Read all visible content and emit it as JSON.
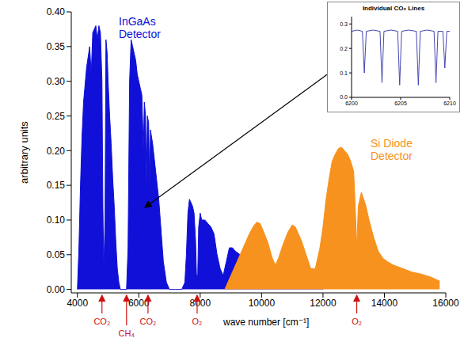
{
  "chart_data": {
    "type": "area",
    "x_label": "wave number [cm⁻¹]",
    "y_label": "arbitrary units",
    "xlim": [
      3800,
      16000
    ],
    "xticks": [
      4000,
      6000,
      8000,
      10000,
      12000,
      14000,
      16000
    ],
    "ylim": [
      -0.005,
      0.4
    ],
    "yticks": [
      {
        "value": 0,
        "label": "0.00"
      },
      {
        "value": 0.05,
        "label": "0.05"
      },
      {
        "value": 0.1,
        "label": "0.10"
      },
      {
        "value": 0.15,
        "label": "0.15"
      },
      {
        "value": 0.2,
        "label": "0.20"
      },
      {
        "value": 0.25,
        "label": "0.25"
      },
      {
        "value": 0.3,
        "label": "0.30"
      },
      {
        "value": 0.35,
        "label": "0.35"
      },
      {
        "value": 0.4,
        "label": "0.40"
      }
    ],
    "grid": false,
    "series": [
      {
        "name": "InGaAs Detector",
        "color": "#1010d8",
        "x": [
          4000,
          4050,
          4100,
          4150,
          4200,
          4300,
          4400,
          4450,
          4500,
          4600,
          4650,
          4700,
          4750,
          4800,
          4830,
          4860,
          4900,
          4930,
          4970,
          5000,
          5050,
          5100,
          5150,
          5200,
          5250,
          5300,
          5350,
          5400,
          5500,
          5600,
          5650,
          5700,
          5750,
          5800,
          5850,
          5900,
          5950,
          6000,
          6050,
          6100,
          6150,
          6180,
          6220,
          6250,
          6280,
          6320,
          6350,
          6380,
          6450,
          6500,
          6550,
          6600,
          6650,
          6700,
          6750,
          6800,
          6900,
          7000,
          7200,
          7400,
          7500,
          7550,
          7600,
          7650,
          7700,
          7750,
          7800,
          7850,
          7880,
          7920,
          7950,
          8000,
          8050,
          8150,
          8250,
          8350,
          8450,
          8550,
          8650,
          8750,
          8850,
          8950,
          9050,
          9150,
          9300,
          9500,
          9700,
          9900,
          10200,
          10600,
          11000,
          11400,
          11800,
          12000
        ],
        "values": [
          0.0,
          0.06,
          0.15,
          0.22,
          0.27,
          0.32,
          0.35,
          0.31,
          0.37,
          0.38,
          0.36,
          0.38,
          0.37,
          0.3,
          0.12,
          0.03,
          0.1,
          0.36,
          0.34,
          0.3,
          0.25,
          0.21,
          0.16,
          0.12,
          0.07,
          0.03,
          0.01,
          0.0,
          0.0,
          0.0,
          0.06,
          0.3,
          0.36,
          0.35,
          0.34,
          0.33,
          0.31,
          0.3,
          0.29,
          0.28,
          0.2,
          0.27,
          0.25,
          0.15,
          0.25,
          0.24,
          0.15,
          0.23,
          0.21,
          0.19,
          0.17,
          0.15,
          0.13,
          0.1,
          0.07,
          0.04,
          0.01,
          0.0,
          0.0,
          0.0,
          0.01,
          0.05,
          0.11,
          0.13,
          0.125,
          0.12,
          0.11,
          0.07,
          0.02,
          0.02,
          0.09,
          0.11,
          0.1,
          0.1,
          0.095,
          0.09,
          0.08,
          0.05,
          0.03,
          0.02,
          0.04,
          0.06,
          0.06,
          0.055,
          0.05,
          0.045,
          0.04,
          0.035,
          0.03,
          0.025,
          0.02,
          0.015,
          0.01,
          0.0
        ]
      },
      {
        "name": "Si Diode Detector",
        "color": "#f7921e",
        "x": [
          8800,
          9000,
          9200,
          9400,
          9600,
          9750,
          9850,
          9950,
          10050,
          10200,
          10350,
          10450,
          10550,
          10700,
          10850,
          11000,
          11100,
          11200,
          11300,
          11450,
          11600,
          11750,
          11900,
          12000,
          12100,
          12200,
          12300,
          12400,
          12500,
          12600,
          12700,
          12800,
          12900,
          13000,
          13050,
          13100,
          13150,
          13250,
          13400,
          13500,
          13650,
          13800,
          13950,
          14100,
          14300,
          14600,
          14900,
          15200,
          15500,
          15800
        ],
        "values": [
          0.0,
          0.02,
          0.04,
          0.06,
          0.08,
          0.092,
          0.097,
          0.095,
          0.085,
          0.068,
          0.045,
          0.035,
          0.045,
          0.065,
          0.082,
          0.093,
          0.09,
          0.08,
          0.07,
          0.05,
          0.03,
          0.03,
          0.06,
          0.09,
          0.13,
          0.16,
          0.185,
          0.195,
          0.203,
          0.205,
          0.2,
          0.195,
          0.185,
          0.17,
          0.12,
          0.06,
          0.12,
          0.14,
          0.12,
          0.1,
          0.075,
          0.055,
          0.045,
          0.04,
          0.035,
          0.03,
          0.025,
          0.022,
          0.018,
          0.012
        ]
      }
    ],
    "annotations": [
      {
        "text": "CO₂",
        "x": 4800,
        "color": "#d01010"
      },
      {
        "text": "CH₄",
        "x": 5600,
        "color": "#d01010"
      },
      {
        "text": "CO₂",
        "x": 6300,
        "color": "#d01010"
      },
      {
        "text": "O₂",
        "x": 7900,
        "color": "#d01010"
      },
      {
        "text": "O₂",
        "x": 13100,
        "color": "#d01010"
      }
    ],
    "inset": {
      "type": "line",
      "title": "Individual CO₂ Lines",
      "color": "#4646b4",
      "x": [
        6200,
        6200.6,
        6201.1,
        6201.3,
        6201.5,
        6202.2,
        6202.9,
        6203.1,
        6203.3,
        6204.0,
        6204.7,
        6204.9,
        6205.1,
        6205.8,
        6206.6,
        6206.8,
        6207.0,
        6207.7,
        6208.4,
        6208.6,
        6208.8,
        6209.3,
        6209.5,
        6209.7,
        6210
      ],
      "values": [
        0.27,
        0.275,
        0.27,
        0.1,
        0.27,
        0.275,
        0.27,
        0.06,
        0.27,
        0.275,
        0.27,
        0.05,
        0.27,
        0.275,
        0.27,
        0.05,
        0.27,
        0.275,
        0.27,
        0.06,
        0.27,
        0.27,
        0.12,
        0.27,
        0.27
      ],
      "xlim": [
        6200,
        6210
      ],
      "xticks": [
        6200,
        6205,
        6210
      ],
      "ylim": [
        0,
        0.33
      ],
      "yticks": [
        {
          "value": 0,
          "label": "0.0"
        },
        {
          "value": 0.1,
          "label": "0.1"
        },
        {
          "value": 0.2,
          "label": "0.2"
        },
        {
          "value": 0.3,
          "label": "0.3"
        }
      ]
    }
  }
}
